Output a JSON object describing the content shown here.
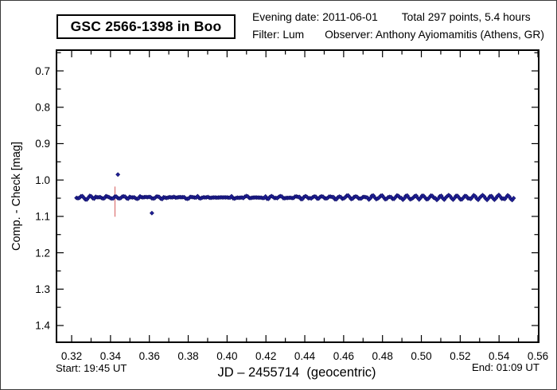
{
  "header": {
    "target_title": "GSC 2566-1398 in Boo",
    "evening_date": "Evening date: 2011-06-01",
    "total": "Total 297 points, 5.4 hours",
    "filter": "Filter: Lum",
    "observer": "Observer: Anthony Ayiomamitis (Athens, GR)"
  },
  "footer": {
    "start": "Start: 19:45 UT",
    "end": "End: 01:09 UT"
  },
  "chart_data": {
    "type": "scatter",
    "title": "GSC 2566-1398 in Boo",
    "xlabel": "JD – 2455714  (geocentric)",
    "ylabel": "Comp. - Check [mag]",
    "n_points": 297,
    "duration_hours": 5.4,
    "start_ut": "19:45",
    "end_ut": "01:09",
    "grid": false,
    "y_inverted": true,
    "xlim": [
      0.3122,
      0.5604
    ],
    "ylim_top_to_bottom": [
      0.643,
      1.446
    ],
    "x_major_ticks": [
      0.32,
      0.34,
      0.36,
      0.38,
      0.4,
      0.42,
      0.44,
      0.46,
      0.48,
      0.5,
      0.52,
      0.54,
      0.56
    ],
    "x_major_labels": [
      "0.32",
      "0.34",
      "0.36",
      "0.38",
      "0.40",
      "0.42",
      "0.44",
      "0.46",
      "0.48",
      "0.50",
      "0.52",
      "0.54",
      "0.56"
    ],
    "x_minor_ticks": [
      0.33,
      0.35,
      0.37,
      0.39,
      0.41,
      0.43,
      0.45,
      0.47,
      0.49,
      0.51,
      0.53,
      0.55
    ],
    "y_major_ticks": [
      0.7,
      0.8,
      0.9,
      1.0,
      1.1,
      1.2,
      1.3,
      1.4
    ],
    "y_major_labels": [
      "0.7",
      "0.8",
      "0.9",
      "1.0",
      "1.1",
      "1.2",
      "1.3",
      "1.4"
    ],
    "y_minor_ticks": [
      0.65,
      0.75,
      0.85,
      0.95,
      1.05,
      1.15,
      1.25,
      1.35
    ],
    "marker": "diamond",
    "marker_color": "#20209a",
    "marker_edge_color": "#0d0d60",
    "band": {
      "x_start": 0.3225,
      "x_end": 0.5475,
      "n": 297,
      "baseline_mag": 1.048,
      "offsets_a": [
        0.0031,
        0.0012,
        -0.0018,
        -0.0035,
        -0.0011,
        0.0019,
        0.0038,
        0.0021,
        -0.0008,
        -0.0029,
        0.0003,
        0.0027,
        0.0009,
        -0.0021,
        -0.0036,
        -0.0016,
        0.0014
      ],
      "offsets_b": [
        -0.0019,
        0.0008,
        0.0029,
        0.0002,
        -0.0026,
        -0.0009,
        0.0017,
        0.0036,
        0.0013,
        -0.0015,
        -0.0034,
        -0.0006,
        0.0022,
        0.0001,
        0.0031,
        0.0011,
        -0.0024,
        -0.0017,
        0.0018,
        0.0033,
        -0.0002,
        -0.0012,
        -0.0028
      ]
    },
    "outliers": [
      {
        "x": 0.3438,
        "y": 0.985
      },
      {
        "x": 0.3613,
        "y": 1.091
      }
    ],
    "error_bar": {
      "x": 0.3423,
      "y_from": 1.018,
      "y_to": 1.101,
      "color": "#dd7a7a"
    }
  }
}
